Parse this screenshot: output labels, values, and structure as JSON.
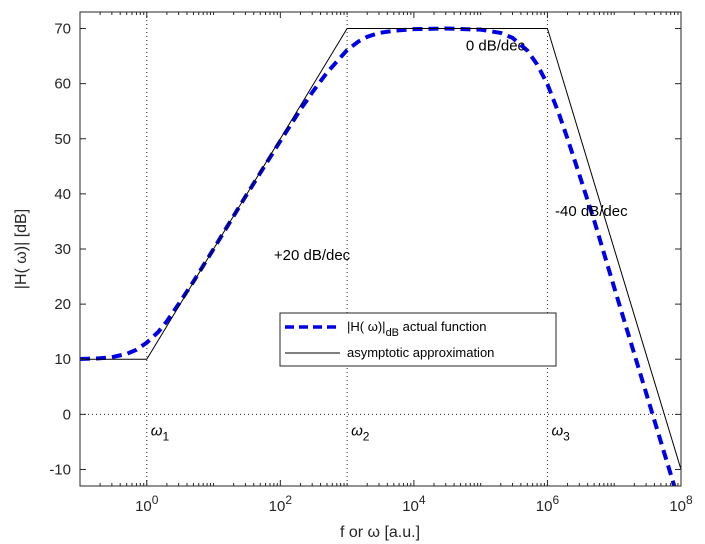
{
  "chart_data": {
    "type": "line",
    "title": "",
    "xlabel": "f  or  ω  [a.u.]",
    "ylabel": "|H( ω)|  [dB]",
    "xscale": "log",
    "xlim": [
      0.1,
      100000000
    ],
    "ylim": [
      -13,
      73
    ],
    "y_ticks": [
      -10,
      0,
      10,
      20,
      30,
      40,
      50,
      60,
      70
    ],
    "x_ticks": [
      {
        "value": 1,
        "base": "10",
        "exp": "0"
      },
      {
        "value": 100,
        "base": "10",
        "exp": "2"
      },
      {
        "value": 10000,
        "base": "10",
        "exp": "4"
      },
      {
        "value": 1000000,
        "base": "10",
        "exp": "6"
      },
      {
        "value": 100000000,
        "base": "10",
        "exp": "8"
      }
    ],
    "grid": false,
    "legend": {
      "placement": "center",
      "entries": [
        {
          "name_main": "|H( ω)|",
          "name_sub": "dB",
          "name_tail": " actual function",
          "color": "#0000e6",
          "style": "dashed"
        },
        {
          "name_main": "asymptotic approximation",
          "name_sub": "",
          "name_tail": "",
          "color": "#000000",
          "style": "solid"
        }
      ]
    },
    "reference_lines": {
      "horizontal": [
        0
      ],
      "vertical": [
        {
          "x": 1,
          "label": "ω",
          "sub": "1"
        },
        {
          "x": 1000,
          "label": "ω",
          "sub": "2"
        },
        {
          "x": 1000000,
          "label": "ω",
          "sub": "3"
        }
      ]
    },
    "annotations": [
      {
        "text": "+20 dB/dec",
        "x": 80,
        "y": 28
      },
      {
        "text": "0 dB/dec",
        "x": 60000,
        "y": 66
      },
      {
        "text": "-40 dB/dec",
        "x": 1300000,
        "y": 36
      }
    ],
    "series": [
      {
        "name": "actual function",
        "color": "#0000e6",
        "x": [
          0.1,
          0.2,
          0.3,
          0.5,
          0.7,
          1,
          1.5,
          2,
          3,
          5,
          10,
          30,
          100,
          200,
          300,
          500,
          700,
          1000,
          1500,
          2000,
          3000,
          5000,
          10000,
          30000,
          100000,
          200000,
          300000,
          500000,
          700000,
          1000000,
          1500000,
          2000000,
          3000000,
          5000000,
          10000000,
          30000000,
          50000000,
          100000000
        ],
        "y": [
          10.04,
          10.17,
          10.37,
          10.97,
          11.72,
          13.01,
          15.0,
          16.9,
          20.0,
          24.1,
          30.0,
          39.5,
          49.6,
          55.3,
          58.4,
          62.0,
          64.0,
          66.1,
          67.7,
          68.5,
          69.2,
          69.6,
          69.9,
          70.0,
          69.8,
          69.2,
          68.3,
          66.0,
          63.5,
          59.9,
          54.4,
          50.0,
          43.5,
          35.2,
          23.0,
          3.9,
          -5.0,
          -17.0
        ]
      },
      {
        "name": "asymptotic approximation",
        "color": "#000000",
        "x": [
          0.1,
          1,
          1000,
          1000000,
          100000000
        ],
        "y": [
          10,
          10,
          70,
          70,
          -10
        ]
      }
    ]
  }
}
